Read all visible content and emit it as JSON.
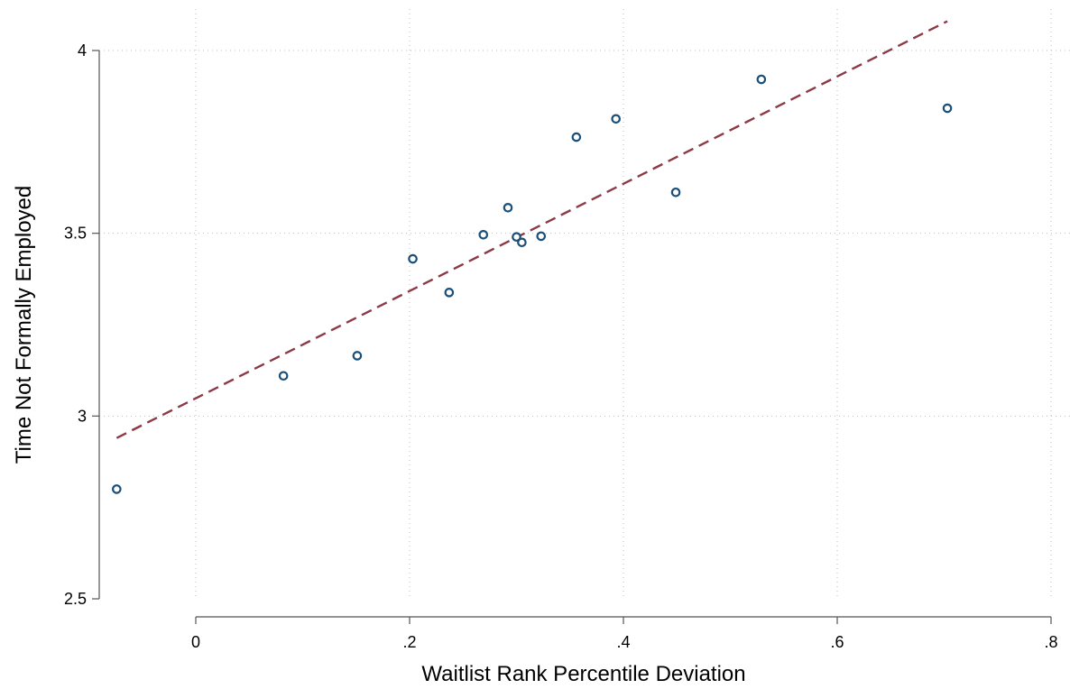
{
  "chart_data": {
    "type": "scatter",
    "title": "",
    "xlabel": "Waitlist Rank Percentile Deviation",
    "ylabel": "Time Not Formally Employed",
    "xlim": [
      -0.09,
      0.8
    ],
    "ylim": [
      2.5,
      4.0
    ],
    "xticks": [
      0,
      0.2,
      0.4,
      0.6,
      0.8
    ],
    "xtick_labels": [
      "0",
      ".2",
      ".4",
      ".6",
      ".8"
    ],
    "yticks": [
      2.5,
      3,
      3.5,
      4
    ],
    "ytick_labels": [
      "2.5",
      "3",
      "3.5",
      "4"
    ],
    "grid": true,
    "series": [
      {
        "points": [
          {
            "x": -0.074,
            "y": 2.8
          },
          {
            "x": 0.082,
            "y": 3.11
          },
          {
            "x": 0.151,
            "y": 3.165
          },
          {
            "x": 0.203,
            "y": 3.43
          },
          {
            "x": 0.237,
            "y": 3.338
          },
          {
            "x": 0.269,
            "y": 3.496
          },
          {
            "x": 0.292,
            "y": 3.57
          },
          {
            "x": 0.3,
            "y": 3.49
          },
          {
            "x": 0.305,
            "y": 3.475
          },
          {
            "x": 0.323,
            "y": 3.492
          },
          {
            "x": 0.356,
            "y": 3.763
          },
          {
            "x": 0.393,
            "y": 3.813
          },
          {
            "x": 0.449,
            "y": 3.612
          },
          {
            "x": 0.529,
            "y": 3.921
          },
          {
            "x": 0.703,
            "y": 3.842
          }
        ],
        "marker": "hollow-circle",
        "color": "#1a4f7a"
      }
    ],
    "fit_line": {
      "style": "dashed",
      "color": "#8b3a46",
      "x": [
        -0.074,
        0.703
      ],
      "y": [
        2.94,
        4.08
      ]
    }
  }
}
